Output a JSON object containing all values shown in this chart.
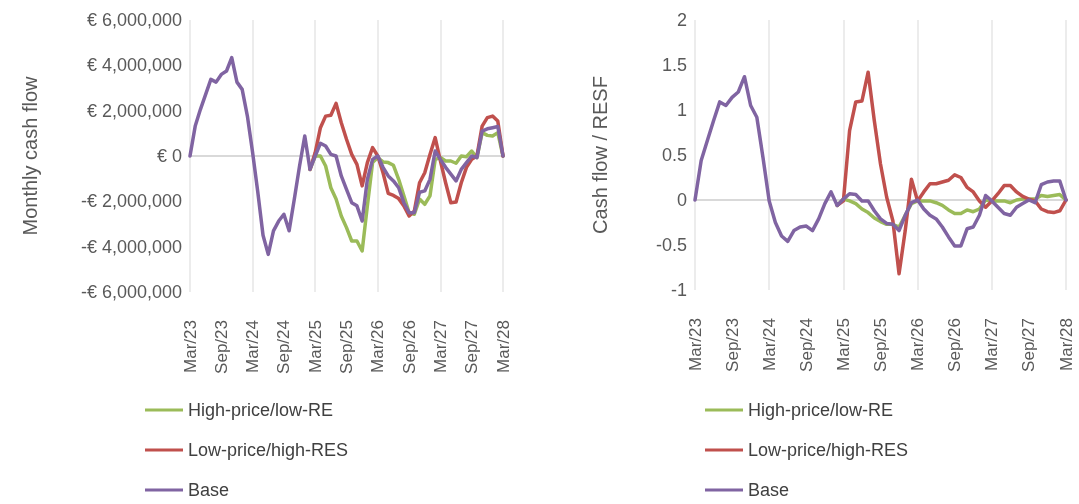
{
  "chart_data": [
    {
      "type": "line",
      "ylabel": "Monthly cash flow",
      "categories": [
        "Mar/23",
        null,
        null,
        null,
        null,
        null,
        "Sep/23",
        null,
        null,
        null,
        null,
        null,
        "Mar/24",
        null,
        null,
        null,
        null,
        null,
        "Sep/24",
        null,
        null,
        null,
        null,
        null,
        "Mar/25",
        null,
        null,
        null,
        null,
        null,
        "Sep/25",
        null,
        null,
        null,
        null,
        null,
        "Mar/26",
        null,
        null,
        null,
        null,
        null,
        "Sep/26",
        null,
        null,
        null,
        null,
        null,
        "Mar/27",
        null,
        null,
        null,
        null,
        null,
        "Sep/27",
        null,
        null,
        null,
        null,
        null,
        "Mar/28"
      ],
      "ylim": [
        -6000000,
        6000000
      ],
      "yticks": [
        {
          "value": -6000000,
          "label": "-€ 6,000,000"
        },
        {
          "value": -4000000,
          "label": "-€ 4,000,000"
        },
        {
          "value": -2000000,
          "label": "-€ 2,000,000"
        },
        {
          "value": 0,
          "label": "€ 0"
        },
        {
          "value": 2000000,
          "label": "€ 2,000,000"
        },
        {
          "value": 4000000,
          "label": "€ 4,000,000"
        },
        {
          "value": 6000000,
          "label": "€ 6,000,000"
        }
      ],
      "grid": "x",
      "legend": "bottom left",
      "marker": "none",
      "line_style": "solid",
      "series": [
        {
          "name": "High-price/low-RE",
          "color": "#9bbb59",
          "values": [
            null,
            null,
            null,
            null,
            null,
            null,
            null,
            null,
            null,
            null,
            null,
            null,
            null,
            null,
            null,
            null,
            null,
            null,
            null,
            null,
            null,
            null,
            null,
            -590000,
            0,
            0,
            -440000,
            -1400000,
            -1900000,
            -2650000,
            -3160000,
            -3750000,
            -3750000,
            -4190000,
            -2200000,
            -290000,
            -70000,
            -260000,
            -290000,
            -410000,
            -1030000,
            -1760000,
            -2500000,
            -2570000,
            -1900000,
            -2130000,
            -1760000,
            -150000,
            -70000,
            -220000,
            -220000,
            -320000,
            0,
            -30000,
            220000,
            -70000,
            1030000,
            910000,
            880000,
            1030000,
            0
          ]
        },
        {
          "name": "Low-price/high-RES",
          "color": "#c0504d",
          "values": [
            null,
            null,
            null,
            null,
            null,
            null,
            null,
            null,
            null,
            null,
            null,
            null,
            null,
            null,
            null,
            null,
            null,
            null,
            null,
            null,
            null,
            null,
            null,
            -590000,
            150000,
            1250000,
            1760000,
            1800000,
            2320000,
            1470000,
            740000,
            70000,
            -370000,
            -1320000,
            -290000,
            370000,
            0,
            -740000,
            -1650000,
            -1740000,
            -1880000,
            -2200000,
            -2650000,
            -2430000,
            -1180000,
            -740000,
            70000,
            810000,
            -220000,
            -1180000,
            -2060000,
            -2030000,
            -1180000,
            -500000,
            -150000,
            0,
            1320000,
            1690000,
            1760000,
            1540000,
            0
          ]
        },
        {
          "name": "Base",
          "color": "#8064a2",
          "values": [
            0,
            1320000,
            2060000,
            2720000,
            3380000,
            3260000,
            3600000,
            3750000,
            4340000,
            3260000,
            2940000,
            1760000,
            150000,
            -1600000,
            -3500000,
            -4340000,
            -3300000,
            -2870000,
            -2570000,
            -3300000,
            -1900000,
            -440000,
            880000,
            -590000,
            0,
            560000,
            440000,
            70000,
            0,
            -880000,
            -1470000,
            -2060000,
            -2200000,
            -2870000,
            -1030000,
            -150000,
            0,
            -500000,
            -880000,
            -1100000,
            -1400000,
            -2060000,
            -2500000,
            -2500000,
            -1600000,
            -1540000,
            -1030000,
            220000,
            -150000,
            -500000,
            -800000,
            -1100000,
            -590000,
            -290000,
            0,
            -70000,
            1100000,
            1200000,
            1250000,
            1300000,
            0
          ]
        }
      ]
    },
    {
      "type": "line",
      "ylabel": "Cash flow / RESF",
      "categories": [
        "Mar/23",
        null,
        null,
        null,
        null,
        null,
        "Sep/23",
        null,
        null,
        null,
        null,
        null,
        "Mar/24",
        null,
        null,
        null,
        null,
        null,
        "Sep/24",
        null,
        null,
        null,
        null,
        null,
        "Mar/25",
        null,
        null,
        null,
        null,
        null,
        "Sep/25",
        null,
        null,
        null,
        null,
        null,
        "Mar/26",
        null,
        null,
        null,
        null,
        null,
        "Sep/26",
        null,
        null,
        null,
        null,
        null,
        "Mar/27",
        null,
        null,
        null,
        null,
        null,
        "Sep/27",
        null,
        null,
        null,
        null,
        null,
        "Mar/28"
      ],
      "ylim": [
        -1,
        2
      ],
      "yticks": [
        -1,
        -0.5,
        0,
        0.5,
        1,
        1.5,
        2
      ],
      "grid": "x",
      "legend": "bottom left",
      "marker": "none",
      "line_style": "solid",
      "series": [
        {
          "name": "High-price/low-RE",
          "color": "#9bbb59",
          "values": [
            null,
            null,
            null,
            null,
            null,
            null,
            null,
            null,
            null,
            null,
            null,
            null,
            null,
            null,
            null,
            null,
            null,
            null,
            null,
            null,
            null,
            null,
            null,
            -0.06,
            0.01,
            -0.01,
            -0.04,
            -0.1,
            -0.14,
            -0.2,
            -0.24,
            -0.27,
            -0.27,
            -0.3,
            -0.17,
            -0.04,
            -0.01,
            -0.01,
            -0.01,
            -0.03,
            -0.06,
            -0.11,
            -0.15,
            -0.15,
            -0.11,
            -0.13,
            -0.1,
            0,
            -0.01,
            -0.01,
            -0.01,
            -0.03,
            0,
            0.01,
            0.01,
            0.01,
            0.05,
            0.04,
            0.05,
            0.06,
            0
          ]
        },
        {
          "name": "Low-price/high-RES",
          "color": "#c0504d",
          "values": [
            null,
            null,
            null,
            null,
            null,
            null,
            null,
            null,
            null,
            null,
            null,
            null,
            null,
            null,
            null,
            null,
            null,
            null,
            null,
            null,
            null,
            null,
            null,
            -0.06,
            -0.01,
            0.77,
            1.09,
            1.1,
            1.42,
            0.88,
            0.4,
            0.03,
            -0.23,
            -0.82,
            -0.34,
            0.23,
            -0.01,
            0.09,
            0.18,
            0.18,
            0.2,
            0.22,
            0.28,
            0.25,
            0.14,
            0.09,
            -0.01,
            -0.08,
            -0.01,
            0.07,
            0.16,
            0.16,
            0.09,
            0.04,
            0.01,
            -0.01,
            -0.1,
            -0.13,
            -0.14,
            -0.12,
            0
          ]
        },
        {
          "name": "Base",
          "color": "#8064a2",
          "values": [
            0,
            0.44,
            0.66,
            0.88,
            1.09,
            1.05,
            1.14,
            1.2,
            1.37,
            1.05,
            0.92,
            0.47,
            -0.01,
            -0.25,
            -0.4,
            -0.46,
            -0.34,
            -0.3,
            -0.29,
            -0.34,
            -0.21,
            -0.04,
            0.09,
            -0.06,
            0.01,
            0.07,
            0.06,
            -0.01,
            -0.01,
            -0.12,
            -0.21,
            -0.26,
            -0.27,
            -0.34,
            -0.17,
            -0.03,
            0,
            -0.1,
            -0.17,
            -0.21,
            -0.3,
            -0.41,
            -0.51,
            -0.51,
            -0.32,
            -0.3,
            -0.17,
            0.05,
            -0.01,
            -0.08,
            -0.15,
            -0.17,
            -0.08,
            -0.04,
            0,
            -0.03,
            0.17,
            0.2,
            0.21,
            0.21,
            0
          ]
        }
      ]
    }
  ]
}
